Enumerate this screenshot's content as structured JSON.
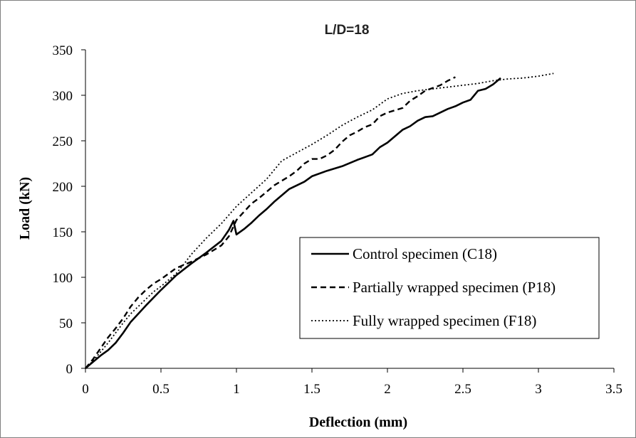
{
  "chart_data": {
    "type": "line",
    "title": "L/D=18",
    "xlabel": "Deflection  (mm)",
    "ylabel": "Load (kN)",
    "xlim": [
      0,
      3.5
    ],
    "ylim": [
      0,
      350
    ],
    "xticks": [
      0,
      0.5,
      1,
      1.5,
      2,
      2.5,
      3,
      3.5
    ],
    "yticks": [
      0,
      50,
      100,
      150,
      200,
      250,
      300,
      350
    ],
    "grid": false,
    "legend_position": "bottom-right",
    "series": [
      {
        "name": "Control specimen (C18)",
        "style": "solid",
        "color": "#000000",
        "points": [
          [
            0,
            0
          ],
          [
            0.05,
            7
          ],
          [
            0.1,
            14
          ],
          [
            0.15,
            20
          ],
          [
            0.2,
            28
          ],
          [
            0.25,
            39
          ],
          [
            0.3,
            51
          ],
          [
            0.4,
            69
          ],
          [
            0.5,
            86
          ],
          [
            0.6,
            102
          ],
          [
            0.7,
            115
          ],
          [
            0.8,
            127
          ],
          [
            0.9,
            140
          ],
          [
            0.95,
            152
          ],
          [
            0.98,
            162
          ],
          [
            1.0,
            147
          ],
          [
            1.05,
            153
          ],
          [
            1.1,
            160
          ],
          [
            1.15,
            168
          ],
          [
            1.2,
            175
          ],
          [
            1.25,
            183
          ],
          [
            1.3,
            190
          ],
          [
            1.35,
            197
          ],
          [
            1.4,
            201
          ],
          [
            1.45,
            205
          ],
          [
            1.5,
            211
          ],
          [
            1.6,
            217
          ],
          [
            1.7,
            222
          ],
          [
            1.8,
            229
          ],
          [
            1.9,
            235
          ],
          [
            1.95,
            243
          ],
          [
            2.0,
            248
          ],
          [
            2.05,
            255
          ],
          [
            2.1,
            262
          ],
          [
            2.15,
            266
          ],
          [
            2.2,
            272
          ],
          [
            2.25,
            276
          ],
          [
            2.3,
            277
          ],
          [
            2.4,
            285
          ],
          [
            2.45,
            288
          ],
          [
            2.5,
            292
          ],
          [
            2.55,
            295
          ],
          [
            2.6,
            305
          ],
          [
            2.65,
            307
          ],
          [
            2.7,
            312
          ],
          [
            2.75,
            319
          ]
        ]
      },
      {
        "name": "Partially wrapped specimen (P18)",
        "style": "dashed",
        "color": "#000000",
        "points": [
          [
            0,
            0
          ],
          [
            0.05,
            10
          ],
          [
            0.1,
            22
          ],
          [
            0.15,
            34
          ],
          [
            0.2,
            44
          ],
          [
            0.25,
            55
          ],
          [
            0.3,
            68
          ],
          [
            0.35,
            78
          ],
          [
            0.4,
            86
          ],
          [
            0.45,
            93
          ],
          [
            0.5,
            98
          ],
          [
            0.55,
            104
          ],
          [
            0.6,
            110
          ],
          [
            0.7,
            117
          ],
          [
            0.8,
            125
          ],
          [
            0.9,
            135
          ],
          [
            0.95,
            145
          ],
          [
            1.0,
            163
          ],
          [
            1.05,
            172
          ],
          [
            1.1,
            181
          ],
          [
            1.15,
            187
          ],
          [
            1.2,
            194
          ],
          [
            1.25,
            201
          ],
          [
            1.3,
            206
          ],
          [
            1.35,
            211
          ],
          [
            1.4,
            217
          ],
          [
            1.45,
            225
          ],
          [
            1.5,
            230
          ],
          [
            1.55,
            230
          ],
          [
            1.6,
            234
          ],
          [
            1.65,
            240
          ],
          [
            1.7,
            249
          ],
          [
            1.75,
            256
          ],
          [
            1.8,
            260
          ],
          [
            1.85,
            265
          ],
          [
            1.9,
            268
          ],
          [
            1.95,
            277
          ],
          [
            2.0,
            281
          ],
          [
            2.1,
            286
          ],
          [
            2.15,
            294
          ],
          [
            2.2,
            299
          ],
          [
            2.25,
            305
          ],
          [
            2.3,
            308
          ],
          [
            2.35,
            311
          ],
          [
            2.4,
            316
          ],
          [
            2.45,
            320
          ]
        ]
      },
      {
        "name": "Fully wrapped specimen (F18)",
        "style": "dotted",
        "color": "#000000",
        "points": [
          [
            0,
            0
          ],
          [
            0.05,
            8
          ],
          [
            0.1,
            18
          ],
          [
            0.15,
            28
          ],
          [
            0.2,
            39
          ],
          [
            0.25,
            50
          ],
          [
            0.3,
            60
          ],
          [
            0.35,
            68
          ],
          [
            0.4,
            76
          ],
          [
            0.45,
            84
          ],
          [
            0.5,
            90
          ],
          [
            0.55,
            97
          ],
          [
            0.6,
            104
          ],
          [
            0.65,
            114
          ],
          [
            0.7,
            125
          ],
          [
            0.8,
            143
          ],
          [
            0.9,
            159
          ],
          [
            1.0,
            178
          ],
          [
            1.1,
            193
          ],
          [
            1.2,
            208
          ],
          [
            1.3,
            228
          ],
          [
            1.4,
            237
          ],
          [
            1.5,
            246
          ],
          [
            1.6,
            256
          ],
          [
            1.7,
            267
          ],
          [
            1.8,
            276
          ],
          [
            1.9,
            284
          ],
          [
            2.0,
            296
          ],
          [
            2.1,
            302
          ],
          [
            2.2,
            305
          ],
          [
            2.3,
            307
          ],
          [
            2.4,
            309
          ],
          [
            2.5,
            311
          ],
          [
            2.6,
            313
          ],
          [
            2.7,
            316
          ],
          [
            2.8,
            318
          ],
          [
            2.9,
            319
          ],
          [
            3.0,
            321
          ],
          [
            3.1,
            324
          ]
        ]
      }
    ]
  }
}
